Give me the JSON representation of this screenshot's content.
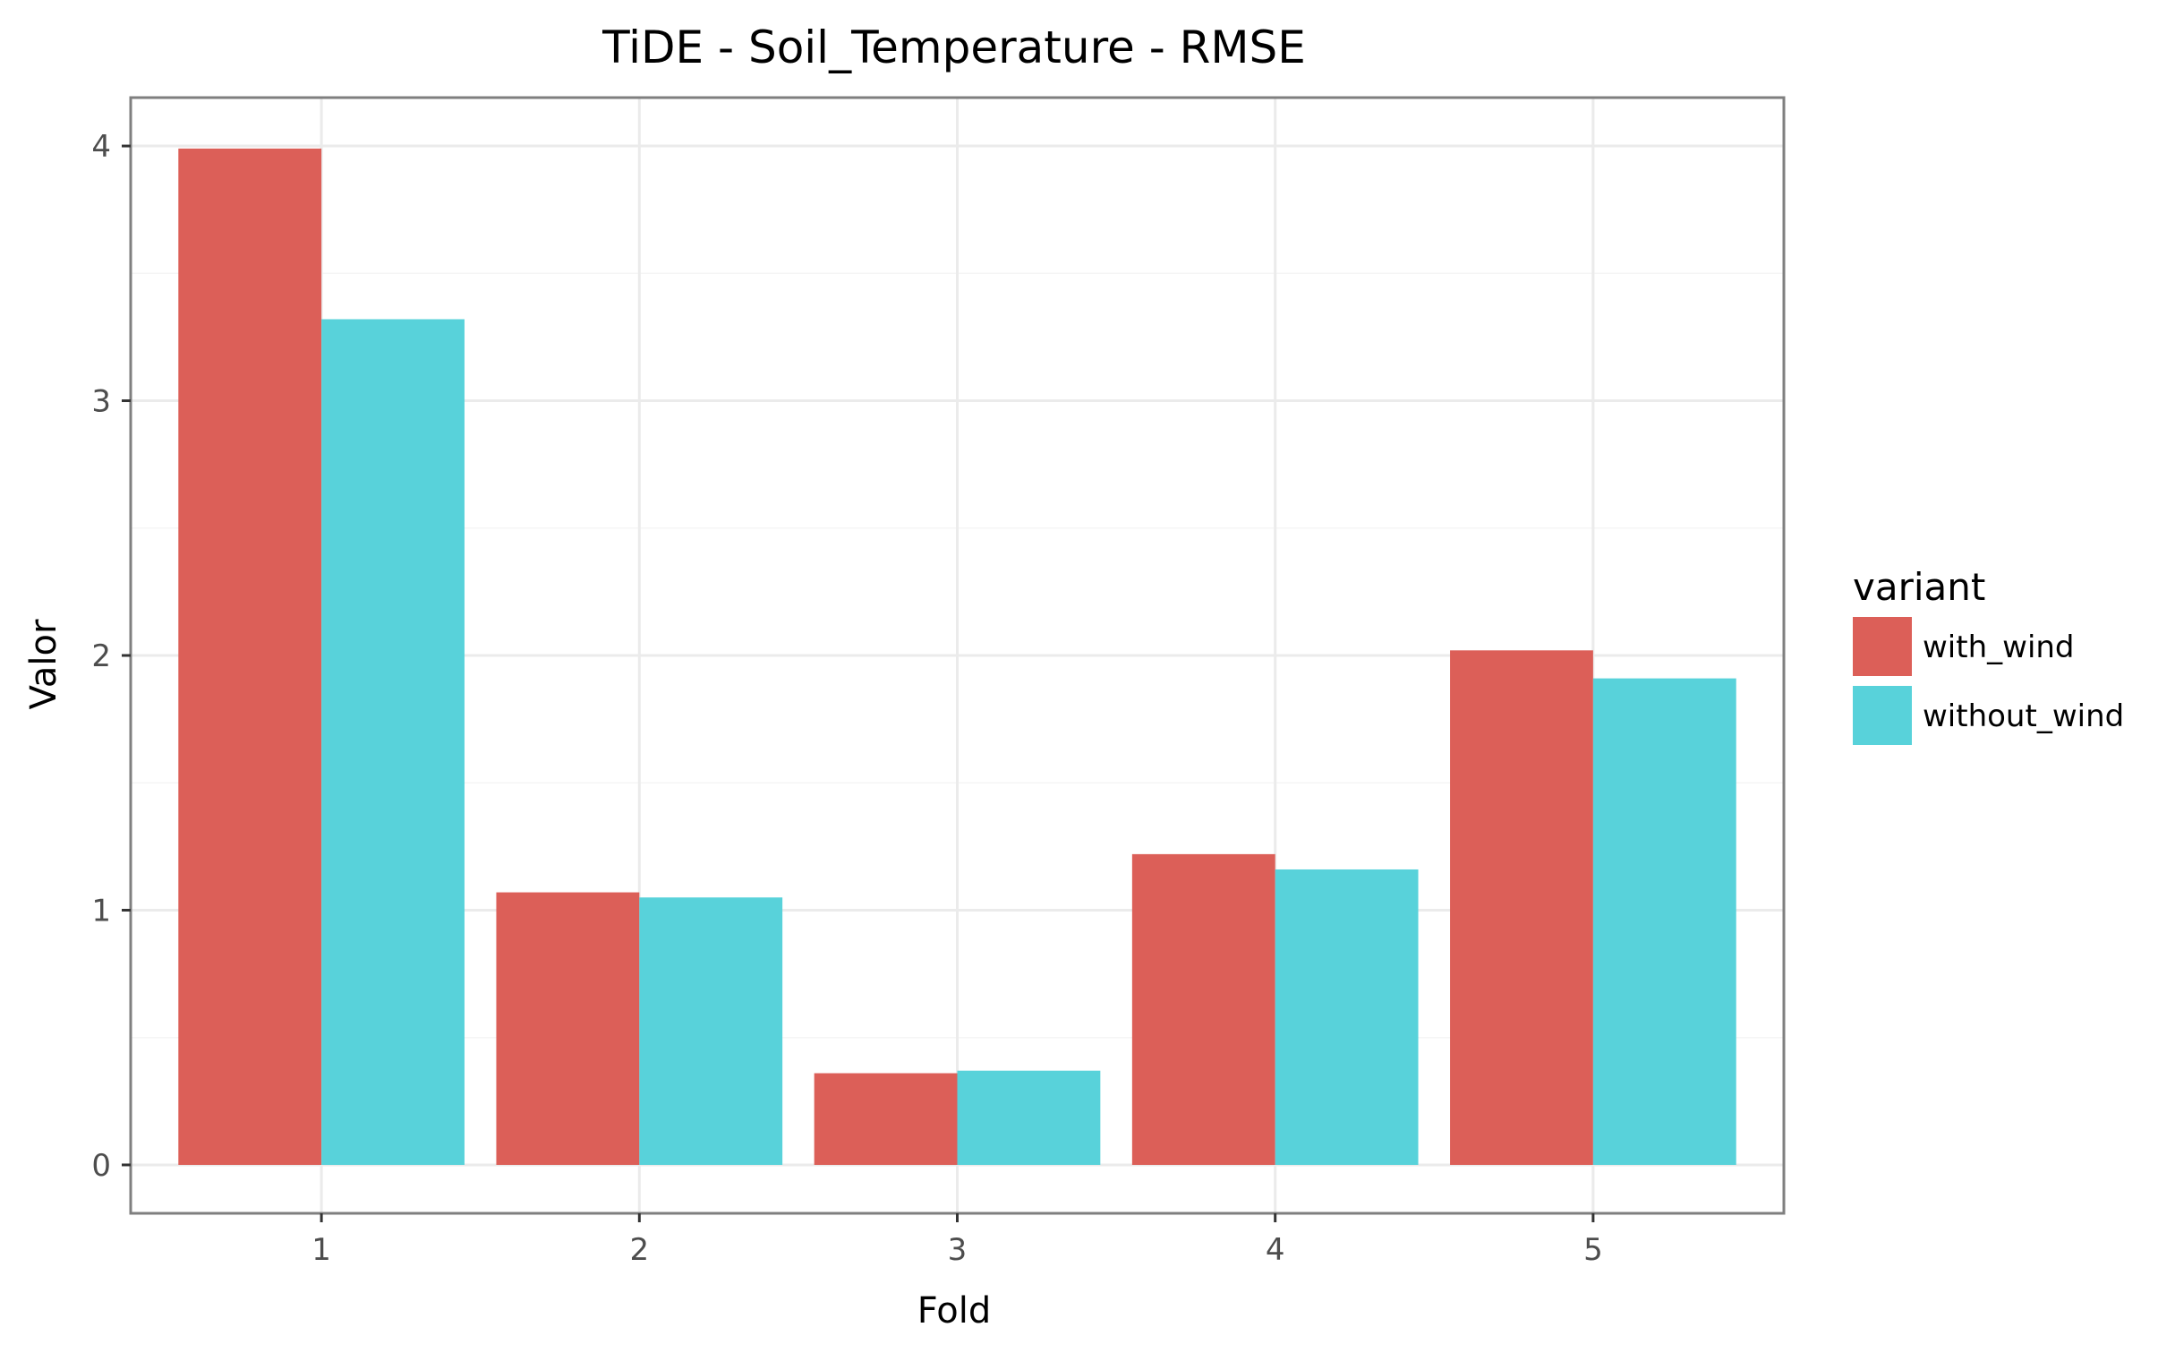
{
  "chart_data": {
    "type": "bar",
    "title": "TiDE - Soil_Temperature - RMSE",
    "xlabel": "Fold",
    "ylabel": "Valor",
    "categories": [
      "1",
      "2",
      "3",
      "4",
      "5"
    ],
    "ylim": [
      -0.19,
      4.19
    ],
    "yticks": [
      "0",
      "1",
      "2",
      "3",
      "4"
    ],
    "grid": true,
    "legend": {
      "title": "variant",
      "position": "right"
    },
    "series": [
      {
        "name": "with_wind",
        "color": "#dc5f58",
        "values": [
          3.99,
          1.07,
          0.36,
          1.22,
          2.02
        ]
      },
      {
        "name": "without_wind",
        "color": "#58d2da",
        "values": [
          3.32,
          1.05,
          0.37,
          1.16,
          1.91
        ]
      }
    ]
  }
}
